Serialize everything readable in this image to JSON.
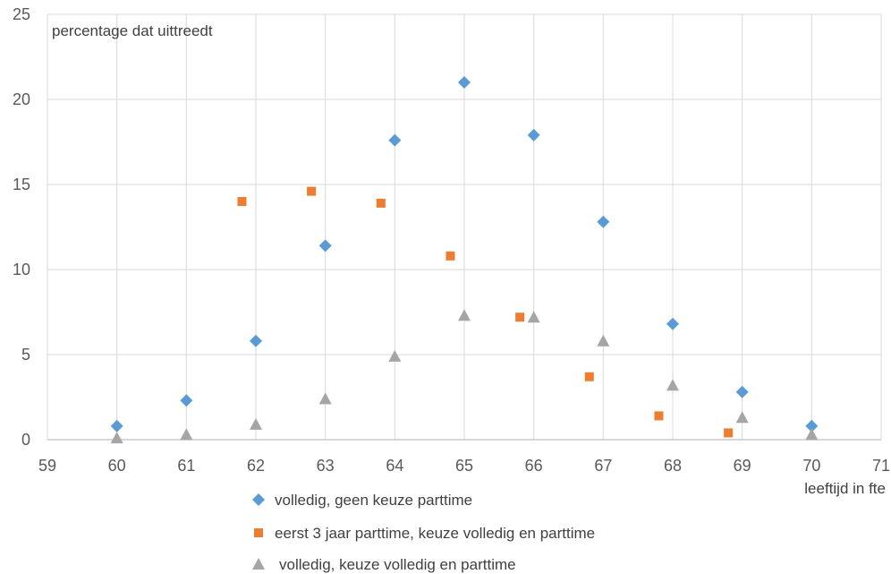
{
  "chart_data": {
    "type": "scatter",
    "ylabel": "percentage dat uittreedt",
    "xlabel": "leeftijd in fte",
    "xlim": [
      59,
      71
    ],
    "ylim": [
      0,
      25
    ],
    "xticks": [
      59,
      60,
      61,
      62,
      63,
      64,
      65,
      66,
      67,
      68,
      69,
      70,
      71
    ],
    "yticks": [
      0,
      5,
      10,
      15,
      20,
      25
    ],
    "grid": true,
    "legend_position": "bottom",
    "series": [
      {
        "name": "volledig, geen keuze parttime",
        "marker": "diamond",
        "color": "#5B9BD5",
        "points": [
          {
            "x": 60,
            "y": 0.8
          },
          {
            "x": 61,
            "y": 2.3
          },
          {
            "x": 62,
            "y": 5.8
          },
          {
            "x": 63,
            "y": 11.4
          },
          {
            "x": 64,
            "y": 17.6
          },
          {
            "x": 65,
            "y": 21.0
          },
          {
            "x": 66,
            "y": 17.9
          },
          {
            "x": 67,
            "y": 12.8
          },
          {
            "x": 68,
            "y": 6.8
          },
          {
            "x": 69,
            "y": 2.8
          },
          {
            "x": 70,
            "y": 0.8
          }
        ]
      },
      {
        "name": "eerst 3 jaar parttime, keuze volledig en parttime",
        "marker": "square",
        "color": "#ED7D31",
        "points": [
          {
            "x": 61.8,
            "y": 14.0
          },
          {
            "x": 62.8,
            "y": 14.6
          },
          {
            "x": 63.8,
            "y": 13.9
          },
          {
            "x": 64.8,
            "y": 10.8
          },
          {
            "x": 65.8,
            "y": 7.2
          },
          {
            "x": 66.8,
            "y": 3.7
          },
          {
            "x": 67.8,
            "y": 1.4
          },
          {
            "x": 68.8,
            "y": 0.4
          }
        ]
      },
      {
        "name": "volledig, keuze volledig en parttime",
        "marker": "triangle",
        "color": "#A5A5A5",
        "points": [
          {
            "x": 60,
            "y": 0.1
          },
          {
            "x": 61,
            "y": 0.3
          },
          {
            "x": 62,
            "y": 0.9
          },
          {
            "x": 63,
            "y": 2.4
          },
          {
            "x": 64,
            "y": 4.9
          },
          {
            "x": 65,
            "y": 7.3
          },
          {
            "x": 66,
            "y": 7.2
          },
          {
            "x": 67,
            "y": 5.8
          },
          {
            "x": 68,
            "y": 3.2
          },
          {
            "x": 69,
            "y": 1.3
          },
          {
            "x": 70,
            "y": 0.3
          }
        ]
      }
    ]
  }
}
